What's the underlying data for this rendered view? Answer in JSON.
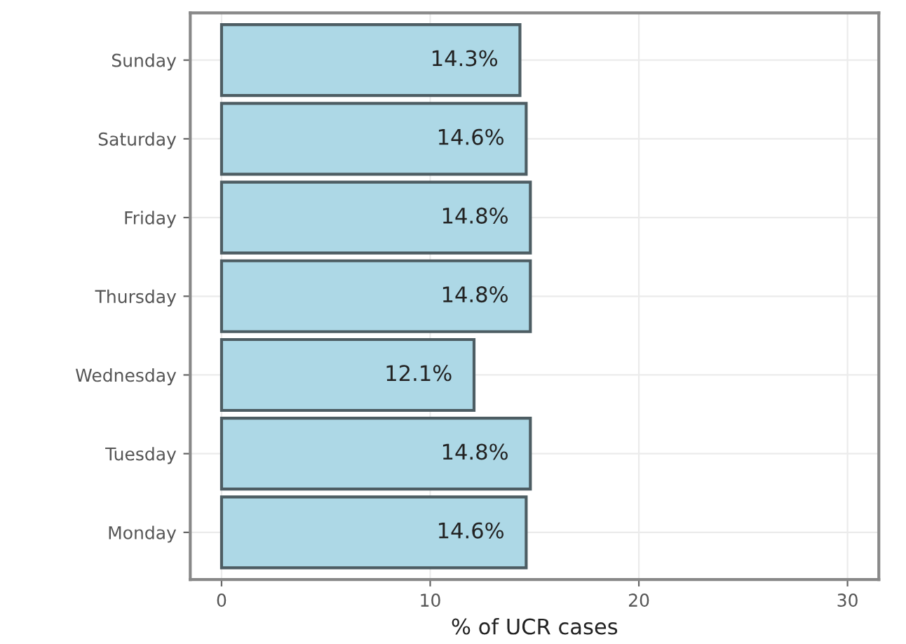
{
  "chart_data": {
    "type": "bar",
    "orientation": "horizontal",
    "xlabel": "% of UCR cases",
    "categories": [
      "Sunday",
      "Saturday",
      "Friday",
      "Thursday",
      "Wednesday",
      "Tuesday",
      "Monday"
    ],
    "values": [
      14.3,
      14.6,
      14.8,
      14.8,
      12.1,
      14.8,
      14.6
    ],
    "value_labels": [
      "14.3%",
      "14.6%",
      "14.8%",
      "14.8%",
      "12.1%",
      "14.8%",
      "14.6%"
    ],
    "color": "#add8e6",
    "xlim": [
      -1.5,
      31.5
    ],
    "xticks": [
      0,
      10,
      20,
      30
    ],
    "grid": true,
    "legend": false
  }
}
